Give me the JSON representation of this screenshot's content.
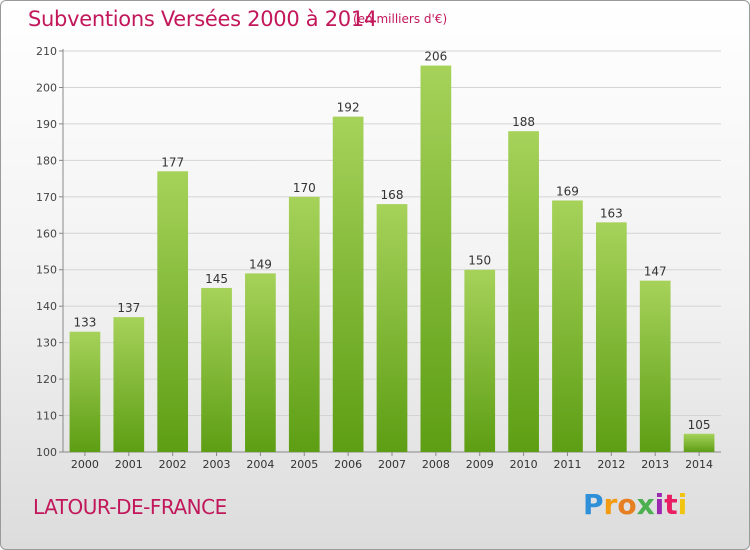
{
  "header": {
    "title": "Subventions Versées 2000 à 2014",
    "unit": "(en milliers d'€)"
  },
  "footer": {
    "commune": "LATOUR-DE-FRANCE",
    "logo_letters": [
      {
        "ch": "P",
        "color": "#2f8fd8"
      },
      {
        "ch": "r",
        "color": "#f39c12"
      },
      {
        "ch": "o",
        "color": "#e67e22"
      },
      {
        "ch": "x",
        "color": "#4caf50"
      },
      {
        "ch": "i",
        "color": "#9c27b0"
      },
      {
        "ch": "t",
        "color": "#e91e63"
      },
      {
        "ch": "i",
        "color": "#f1c40f"
      }
    ]
  },
  "colors": {
    "accent": "#c2185b",
    "bar_top": "#a6d25a",
    "bar_bottom": "#5d9e14"
  },
  "chart_data": {
    "type": "bar",
    "categories": [
      "2000",
      "2001",
      "2002",
      "2003",
      "2004",
      "2005",
      "2006",
      "2007",
      "2008",
      "2009",
      "2010",
      "2011",
      "2012",
      "2013",
      "2014"
    ],
    "values": [
      133,
      137,
      177,
      145,
      149,
      170,
      192,
      168,
      206,
      150,
      188,
      169,
      163,
      147,
      105
    ],
    "ylim": [
      100,
      210
    ],
    "yticks": [
      100,
      110,
      120,
      130,
      140,
      150,
      160,
      170,
      180,
      190,
      200,
      210
    ],
    "grid": true
  }
}
